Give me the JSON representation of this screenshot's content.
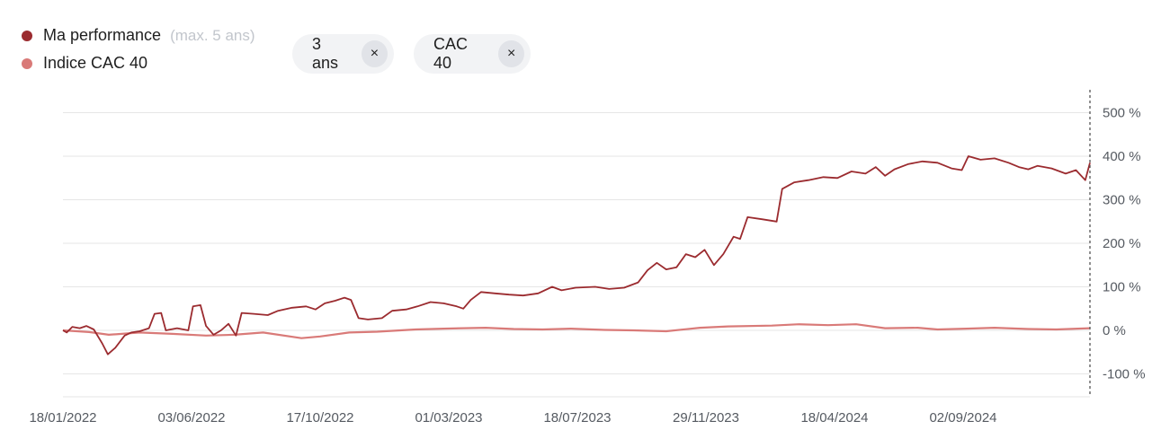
{
  "legend": {
    "items": [
      {
        "label": "Ma performance",
        "note": "(max. 5 ans)",
        "color": "#9b2b2f"
      },
      {
        "label": "Indice CAC 40",
        "note": "",
        "color": "#d97a78"
      }
    ]
  },
  "filters": [
    {
      "label": "3 ans",
      "close_icon": "×"
    },
    {
      "label": "CAC 40",
      "close_icon": "×"
    }
  ],
  "chart_data": {
    "type": "line",
    "x_tick_labels": [
      "18/01/2022",
      "03/06/2022",
      "17/10/2022",
      "01/03/2023",
      "18/07/2023",
      "29/11/2023",
      "18/04/2024",
      "02/09/2024"
    ],
    "y_tick_labels": [
      "500 %",
      "400 %",
      "300 %",
      "200 %",
      "100 %",
      "0 %",
      "-100 %"
    ],
    "y_ticks": [
      500,
      400,
      300,
      200,
      100,
      0,
      -100
    ],
    "ylim": [
      -150,
      550
    ],
    "xlim": [
      "2022-01-18",
      "2025-01-20"
    ],
    "grid": true,
    "legend_position": "top-left",
    "series": [
      {
        "name": "Ma performance",
        "color": "#9b2b2f",
        "points": [
          [
            "2022-01-18",
            0
          ],
          [
            "2022-01-22",
            -5
          ],
          [
            "2022-01-28",
            8
          ],
          [
            "2022-02-05",
            5
          ],
          [
            "2022-02-12",
            10
          ],
          [
            "2022-02-20",
            2
          ],
          [
            "2022-03-01",
            -30
          ],
          [
            "2022-03-07",
            -55
          ],
          [
            "2022-03-15",
            -40
          ],
          [
            "2022-03-25",
            -12
          ],
          [
            "2022-04-01",
            -5
          ],
          [
            "2022-04-10",
            -2
          ],
          [
            "2022-04-20",
            5
          ],
          [
            "2022-04-26",
            38
          ],
          [
            "2022-05-03",
            40
          ],
          [
            "2022-05-08",
            0
          ],
          [
            "2022-05-20",
            5
          ],
          [
            "2022-06-01",
            0
          ],
          [
            "2022-06-06",
            55
          ],
          [
            "2022-06-14",
            58
          ],
          [
            "2022-06-20",
            10
          ],
          [
            "2022-06-28",
            -10
          ],
          [
            "2022-07-06",
            0
          ],
          [
            "2022-07-14",
            15
          ],
          [
            "2022-07-22",
            -12
          ],
          [
            "2022-07-28",
            40
          ],
          [
            "2022-08-10",
            38
          ],
          [
            "2022-08-25",
            35
          ],
          [
            "2022-09-05",
            45
          ],
          [
            "2022-09-20",
            52
          ],
          [
            "2022-10-05",
            55
          ],
          [
            "2022-10-15",
            48
          ],
          [
            "2022-10-25",
            62
          ],
          [
            "2022-11-05",
            68
          ],
          [
            "2022-11-15",
            75
          ],
          [
            "2022-11-22",
            70
          ],
          [
            "2022-11-30",
            28
          ],
          [
            "2022-12-10",
            25
          ],
          [
            "2022-12-25",
            28
          ],
          [
            "2023-01-05",
            45
          ],
          [
            "2023-01-20",
            48
          ],
          [
            "2023-02-01",
            55
          ],
          [
            "2023-02-15",
            65
          ],
          [
            "2023-03-01",
            62
          ],
          [
            "2023-03-15",
            55
          ],
          [
            "2023-03-22",
            50
          ],
          [
            "2023-03-30",
            70
          ],
          [
            "2023-04-10",
            88
          ],
          [
            "2023-04-25",
            85
          ],
          [
            "2023-05-10",
            82
          ],
          [
            "2023-05-25",
            80
          ],
          [
            "2023-06-10",
            85
          ],
          [
            "2023-06-25",
            100
          ],
          [
            "2023-07-05",
            92
          ],
          [
            "2023-07-20",
            98
          ],
          [
            "2023-08-10",
            100
          ],
          [
            "2023-08-25",
            95
          ],
          [
            "2023-09-10",
            98
          ],
          [
            "2023-09-25",
            110
          ],
          [
            "2023-10-05",
            138
          ],
          [
            "2023-10-15",
            155
          ],
          [
            "2023-10-25",
            140
          ],
          [
            "2023-11-05",
            145
          ],
          [
            "2023-11-15",
            175
          ],
          [
            "2023-11-25",
            168
          ],
          [
            "2023-12-05",
            185
          ],
          [
            "2023-12-15",
            150
          ],
          [
            "2023-12-25",
            175
          ],
          [
            "2024-01-05",
            215
          ],
          [
            "2024-01-12",
            210
          ],
          [
            "2024-01-20",
            260
          ],
          [
            "2024-02-05",
            255
          ],
          [
            "2024-02-20",
            250
          ],
          [
            "2024-02-26",
            325
          ],
          [
            "2024-03-10",
            340
          ],
          [
            "2024-03-25",
            345
          ],
          [
            "2024-04-10",
            352
          ],
          [
            "2024-04-25",
            350
          ],
          [
            "2024-05-10",
            365
          ],
          [
            "2024-05-25",
            360
          ],
          [
            "2024-06-05",
            375
          ],
          [
            "2024-06-15",
            355
          ],
          [
            "2024-06-25",
            370
          ],
          [
            "2024-07-10",
            382
          ],
          [
            "2024-07-25",
            388
          ],
          [
            "2024-08-10",
            385
          ],
          [
            "2024-08-25",
            372
          ],
          [
            "2024-09-05",
            368
          ],
          [
            "2024-09-12",
            400
          ],
          [
            "2024-09-25",
            392
          ],
          [
            "2024-10-10",
            395
          ],
          [
            "2024-10-25",
            385
          ],
          [
            "2024-11-05",
            375
          ],
          [
            "2024-11-15",
            370
          ],
          [
            "2024-11-25",
            378
          ],
          [
            "2024-12-10",
            372
          ],
          [
            "2024-12-25",
            360
          ],
          [
            "2025-01-05",
            368
          ],
          [
            "2025-01-15",
            345
          ],
          [
            "2025-01-20",
            385
          ]
        ]
      },
      {
        "name": "Indice CAC 40",
        "color": "#d97a78",
        "points": [
          [
            "2022-01-18",
            0
          ],
          [
            "2022-02-15",
            -4
          ],
          [
            "2022-03-08",
            -10
          ],
          [
            "2022-04-10",
            -5
          ],
          [
            "2022-05-15",
            -8
          ],
          [
            "2022-06-20",
            -12
          ],
          [
            "2022-07-20",
            -10
          ],
          [
            "2022-08-20",
            -5
          ],
          [
            "2022-09-30",
            -18
          ],
          [
            "2022-10-20",
            -14
          ],
          [
            "2022-11-20",
            -5
          ],
          [
            "2022-12-20",
            -3
          ],
          [
            "2023-01-30",
            2
          ],
          [
            "2023-03-01",
            4
          ],
          [
            "2023-04-15",
            6
          ],
          [
            "2023-05-15",
            3
          ],
          [
            "2023-06-15",
            2
          ],
          [
            "2023-07-15",
            4
          ],
          [
            "2023-08-20",
            1
          ],
          [
            "2023-09-20",
            0
          ],
          [
            "2023-10-25",
            -2
          ],
          [
            "2023-11-30",
            6
          ],
          [
            "2023-12-30",
            9
          ],
          [
            "2024-02-15",
            11
          ],
          [
            "2024-03-15",
            14
          ],
          [
            "2024-04-15",
            12
          ],
          [
            "2024-05-15",
            14
          ],
          [
            "2024-06-15",
            5
          ],
          [
            "2024-07-20",
            6
          ],
          [
            "2024-08-10",
            2
          ],
          [
            "2024-09-10",
            4
          ],
          [
            "2024-10-10",
            6
          ],
          [
            "2024-11-15",
            3
          ],
          [
            "2024-12-15",
            2
          ],
          [
            "2025-01-20",
            5
          ]
        ]
      }
    ]
  }
}
